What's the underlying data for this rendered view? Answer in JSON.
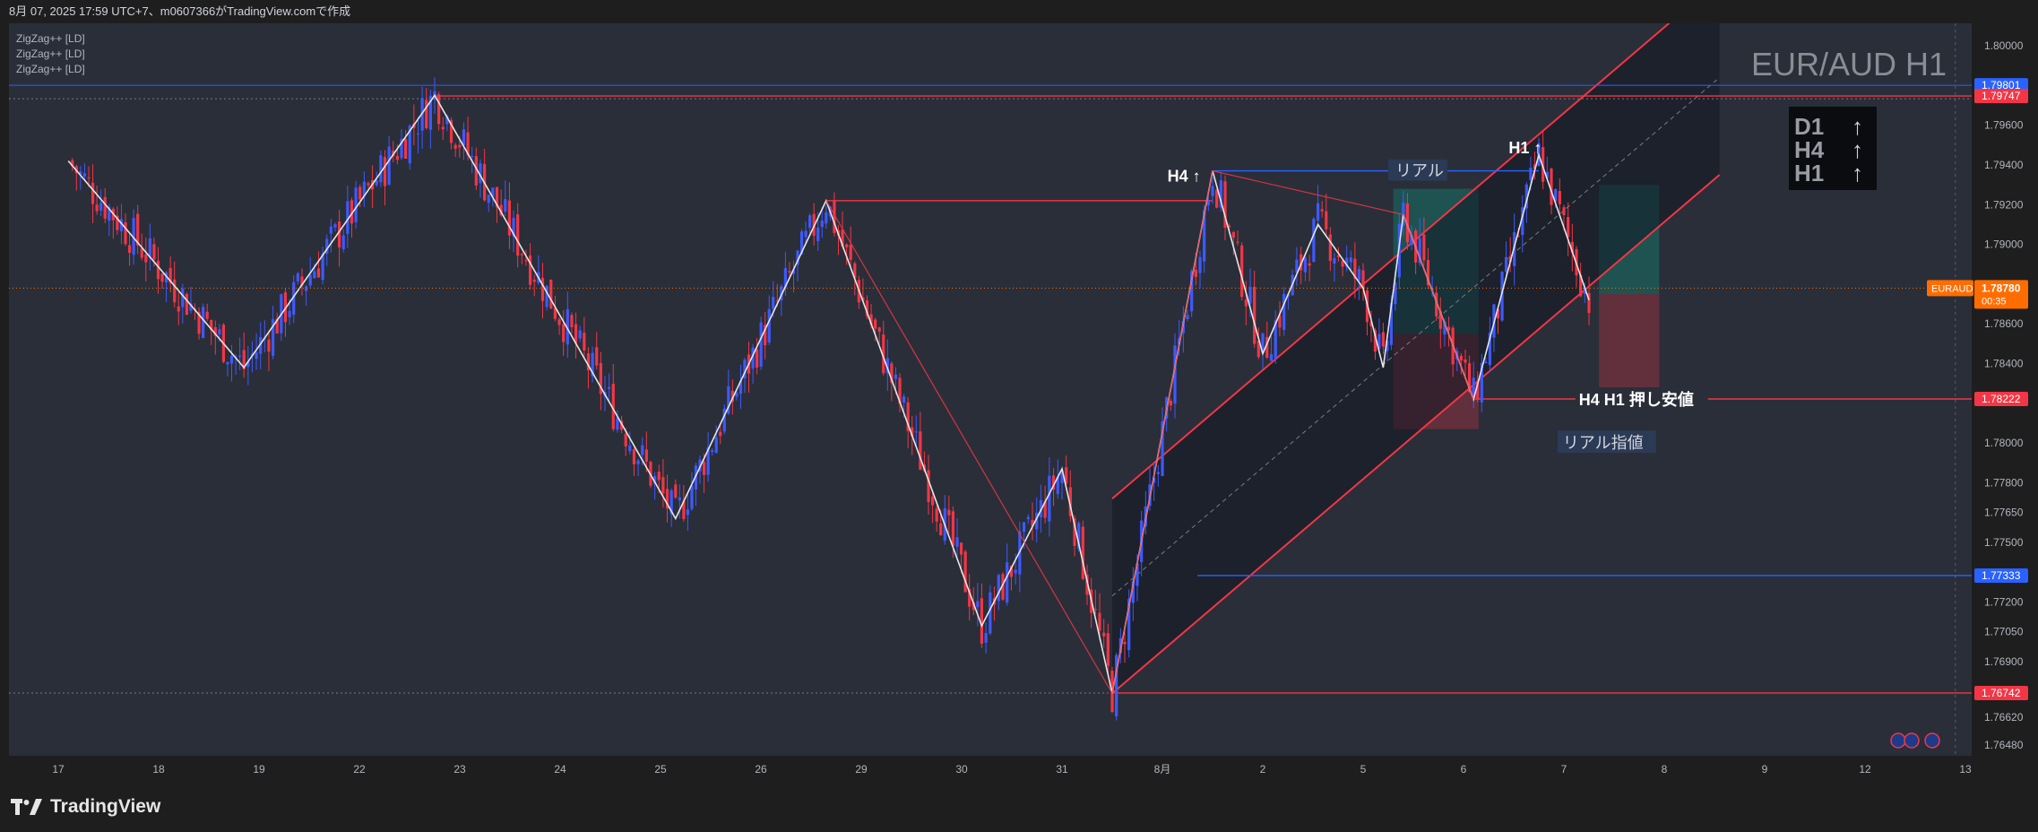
{
  "header": {
    "caption": "8月 07, 2025 17:59 UTC+7、m0607366がTradingView.comで作成"
  },
  "indicators": [
    "ZigZag++ [LD]",
    "ZigZag++ [LD]",
    "ZigZag++ [LD]"
  ],
  "watermark": "EUR/AUD H1",
  "trend_box": {
    "rows": [
      {
        "tf": "D1",
        "arrow": "↑"
      },
      {
        "tf": "H4",
        "arrow": "↑"
      },
      {
        "tf": "H1",
        "arrow": "↑"
      }
    ]
  },
  "annotations": {
    "h4_label": "H4 ↑",
    "h1_label": "H1 ↑",
    "real_label": "リアル",
    "support_label": "H4 H1 押し安値",
    "limit_label": "リアル指値"
  },
  "footer": {
    "brand": "TradingView"
  },
  "colors": {
    "bull": "#3d5afe",
    "bear": "#f23645",
    "bg": "#2a2e39",
    "zigzag_white": "#e6e6e6",
    "line_red": "#f23645",
    "line_blue": "#2962ff",
    "price_orange": "#ff6d00"
  },
  "chart_data": {
    "type": "candlestick",
    "symbol": "EURAUD",
    "timeframe": "H1",
    "ylim": [
      1.7648,
      1.8
    ],
    "y_ticks": [
      "1.80000",
      "1.79600",
      "1.79400",
      "1.79200",
      "1.79000",
      "1.78600",
      "1.78400",
      "1.78000",
      "1.77800",
      "1.77650",
      "1.77500",
      "1.77200",
      "1.77050",
      "1.76900",
      "1.76620",
      "1.76480"
    ],
    "x_ticks": [
      "17",
      "18",
      "19",
      "22",
      "23",
      "24",
      "25",
      "26",
      "29",
      "30",
      "31",
      "8月",
      "2",
      "5",
      "6",
      "7",
      "8",
      "9",
      "12",
      "13"
    ],
    "price_marks": [
      {
        "label": "1.79801",
        "value": 1.79801,
        "color": "#2962ff"
      },
      {
        "label": "1.79747",
        "value": 1.79747,
        "color": "#f23645"
      },
      {
        "label": "1.78222",
        "value": 1.78222,
        "color": "#f23645"
      },
      {
        "label": "1.77333",
        "value": 1.77333,
        "color": "#2962ff"
      },
      {
        "label": "1.76742",
        "value": 1.76742,
        "color": "#f23645"
      }
    ],
    "current": {
      "symbol": "EURAUD",
      "price": "1.78780",
      "countdown": "00:35",
      "value": 1.7878
    },
    "zigzag_pivots": [
      {
        "x": 0.1,
        "y": 1.7942
      },
      {
        "x": 1.85,
        "y": 1.7838
      },
      {
        "x": 3.75,
        "y": 1.7975
      },
      {
        "x": 6.15,
        "y": 1.7762
      },
      {
        "x": 7.65,
        "y": 1.7922
      },
      {
        "x": 9.2,
        "y": 1.7708
      },
      {
        "x": 10.0,
        "y": 1.7787
      },
      {
        "x": 10.5,
        "y": 1.7674
      },
      {
        "x": 11.5,
        "y": 1.7937
      },
      {
        "x": 12.0,
        "y": 1.7845
      },
      {
        "x": 12.55,
        "y": 1.791
      },
      {
        "x": 13.0,
        "y": 1.7878
      },
      {
        "x": 13.2,
        "y": 1.7838
      },
      {
        "x": 13.4,
        "y": 1.7915
      },
      {
        "x": 14.1,
        "y": 1.7822
      },
      {
        "x": 14.75,
        "y": 1.7945
      },
      {
        "x": 15.25,
        "y": 1.7872
      }
    ],
    "channel": {
      "lower": [
        {
          "x": 10.5,
          "y": 1.7674
        },
        {
          "x": 16.55,
          "y": 1.7935
        }
      ],
      "upper": [
        {
          "x": 10.5,
          "y": 1.7772
        },
        {
          "x": 16.55,
          "y": 1.8033
        }
      ]
    },
    "horizontal_lines": [
      {
        "y": 1.79747,
        "x_from": 3.75,
        "x_to": 19.35,
        "color": "#f23645"
      },
      {
        "y": 1.7922,
        "x_from": 7.65,
        "x_to": 11.5,
        "color": "#f23645"
      },
      {
        "y": 1.7937,
        "x_from": 11.5,
        "x_to": 14.75,
        "color": "#2962ff"
      },
      {
        "y": 1.78222,
        "x_from": 14.1,
        "x_to": 19.35,
        "color": "#f23645"
      },
      {
        "y": 1.77333,
        "x_from": 11.35,
        "x_to": 19.35,
        "color": "#2962ff"
      },
      {
        "y": 1.76742,
        "x_from": 10.5,
        "x_to": 19.35,
        "color": "#f23645"
      }
    ],
    "positions": [
      {
        "x_from": 13.3,
        "x_to": 14.15,
        "entry": 1.7855,
        "target": 1.7928,
        "stop": 1.7807
      },
      {
        "x_from": 15.35,
        "x_to": 15.95,
        "entry": 1.7875,
        "target": 1.793,
        "stop": 1.7825
      }
    ]
  }
}
